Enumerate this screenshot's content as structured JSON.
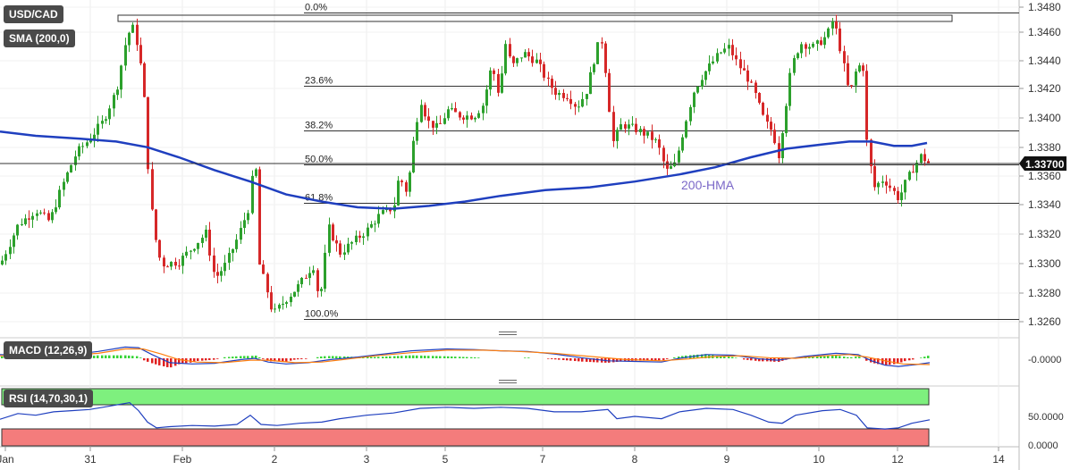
{
  "symbol": "USD/CAD",
  "indicators": {
    "sma": "SMA (200,0)",
    "macd": "MACD (12,26,9)",
    "rsi": "RSI (14,70,30,1)"
  },
  "current_price_label": "1.33700",
  "hma_label": "200-HMA",
  "colors": {
    "bull": "#2ca02c",
    "bear": "#d62728",
    "hma": "#1f3fbf",
    "macd_line": "#1f3fbf",
    "signal_line": "#ff7f0e",
    "rsi_line": "#1f3fbf",
    "overbought_band": "#7ef07e",
    "oversold_band": "#f47c7c",
    "hma_label": "#7b68c8",
    "badge": "#4a4a4a"
  },
  "chart_data": [
    {
      "type": "candlestick",
      "x_tick_labels": [
        "Jan",
        "31",
        "Feb",
        "2",
        "3",
        "5",
        "7",
        "8",
        "9",
        "10",
        "12",
        "14"
      ],
      "y_tick_labels": [
        "1.3260",
        "1.3280",
        "1.3300",
        "1.3320",
        "1.3340",
        "1.3360",
        "1.3380",
        "1.3400",
        "1.3420",
        "1.3440",
        "1.3460",
        "1.3480"
      ],
      "ylim": [
        1.3253,
        1.3485
      ],
      "fibonacci": [
        {
          "label": "0.0%",
          "value": 1.3476
        },
        {
          "label": "23.6%",
          "value": 1.3425
        },
        {
          "label": "38.2%",
          "value": 1.3394
        },
        {
          "label": "50.0%",
          "value": 1.337
        },
        {
          "label": "61.8%",
          "value": 1.3343
        },
        {
          "label": "100.0%",
          "value": 1.3262
        }
      ],
      "current_price": 1.337,
      "series": [
        {
          "name": "200-HMA",
          "values": [
            [
              0,
              1.3393
            ],
            [
              40,
              1.339
            ],
            [
              90,
              1.3388
            ],
            [
              130,
              1.3386
            ],
            [
              165,
              1.3382
            ],
            [
              200,
              1.3375
            ],
            [
              240,
              1.3366
            ],
            [
              280,
              1.3358
            ],
            [
              320,
              1.3349
            ],
            [
              360,
              1.3344
            ],
            [
              400,
              1.334
            ],
            [
              440,
              1.3339
            ],
            [
              480,
              1.3341
            ],
            [
              520,
              1.3344
            ],
            [
              560,
              1.3348
            ],
            [
              610,
              1.3352
            ],
            [
              660,
              1.3354
            ],
            [
              710,
              1.3358
            ],
            [
              760,
              1.3363
            ],
            [
              800,
              1.3368
            ],
            [
              840,
              1.3375
            ],
            [
              880,
              1.3381
            ],
            [
              920,
              1.3384
            ],
            [
              950,
              1.3386
            ],
            [
              975,
              1.3386
            ],
            [
              1000,
              1.3383
            ],
            [
              1020,
              1.3383
            ],
            [
              1037,
              1.3385
            ]
          ]
        }
      ],
      "candle_path": [
        [
          0,
          1.33
        ],
        [
          20,
          1.3328
        ],
        [
          40,
          1.3338
        ],
        [
          55,
          1.333
        ],
        [
          70,
          1.3356
        ],
        [
          85,
          1.3378
        ],
        [
          100,
          1.3388
        ],
        [
          115,
          1.34
        ],
        [
          130,
          1.3422
        ],
        [
          140,
          1.3455
        ],
        [
          147,
          1.3468
        ],
        [
          155,
          1.345
        ],
        [
          162,
          1.341
        ],
        [
          167,
          1.335
        ],
        [
          173,
          1.332
        ],
        [
          180,
          1.33
        ],
        [
          200,
          1.3302
        ],
        [
          215,
          1.3312
        ],
        [
          230,
          1.3322
        ],
        [
          240,
          1.329
        ],
        [
          252,
          1.33
        ],
        [
          265,
          1.3318
        ],
        [
          278,
          1.334
        ],
        [
          285,
          1.3378
        ],
        [
          290,
          1.33
        ],
        [
          298,
          1.3283
        ],
        [
          305,
          1.3265
        ],
        [
          320,
          1.3276
        ],
        [
          335,
          1.3286
        ],
        [
          350,
          1.33
        ],
        [
          357,
          1.3273
        ],
        [
          367,
          1.3326
        ],
        [
          380,
          1.3308
        ],
        [
          395,
          1.3316
        ],
        [
          410,
          1.3324
        ],
        [
          425,
          1.3335
        ],
        [
          440,
          1.334
        ],
        [
          446,
          1.3362
        ],
        [
          455,
          1.335
        ],
        [
          463,
          1.339
        ],
        [
          470,
          1.3416
        ],
        [
          478,
          1.34
        ],
        [
          490,
          1.3395
        ],
        [
          500,
          1.3408
        ],
        [
          515,
          1.3404
        ],
        [
          530,
          1.3404
        ],
        [
          540,
          1.3412
        ],
        [
          550,
          1.344
        ],
        [
          558,
          1.3418
        ],
        [
          565,
          1.3455
        ],
        [
          572,
          1.3438
        ],
        [
          585,
          1.3448
        ],
        [
          600,
          1.3442
        ],
        [
          612,
          1.3428
        ],
        [
          622,
          1.342
        ],
        [
          635,
          1.3418
        ],
        [
          645,
          1.341
        ],
        [
          655,
          1.342
        ],
        [
          665,
          1.3445
        ],
        [
          672,
          1.346
        ],
        [
          678,
          1.3432
        ],
        [
          685,
          1.3385
        ],
        [
          695,
          1.3398
        ],
        [
          710,
          1.3395
        ],
        [
          725,
          1.339
        ],
        [
          735,
          1.3385
        ],
        [
          745,
          1.3365
        ],
        [
          755,
          1.337
        ],
        [
          765,
          1.3396
        ],
        [
          775,
          1.342
        ],
        [
          785,
          1.3432
        ],
        [
          795,
          1.344
        ],
        [
          805,
          1.3448
        ],
        [
          815,
          1.3452
        ],
        [
          825,
          1.344
        ],
        [
          835,
          1.3432
        ],
        [
          845,
          1.3418
        ],
        [
          855,
          1.34
        ],
        [
          865,
          1.3392
        ],
        [
          870,
          1.3374
        ],
        [
          878,
          1.3408
        ],
        [
          885,
          1.3438
        ],
        [
          895,
          1.3455
        ],
        [
          910,
          1.3452
        ],
        [
          925,
          1.346
        ],
        [
          932,
          1.3472
        ],
        [
          940,
          1.345
        ],
        [
          950,
          1.3418
        ],
        [
          958,
          1.3438
        ],
        [
          965,
          1.344
        ],
        [
          970,
          1.338
        ],
        [
          978,
          1.3354
        ],
        [
          988,
          1.336
        ],
        [
          998,
          1.3352
        ],
        [
          1005,
          1.3346
        ],
        [
          1012,
          1.3356
        ],
        [
          1020,
          1.3366
        ],
        [
          1030,
          1.3376
        ],
        [
          1040,
          1.337
        ]
      ]
    },
    {
      "type": "line",
      "title": "MACD (12,26,9)",
      "y_tick_labels": [
        "-0.0000"
      ],
      "series": [
        {
          "name": "MACD",
          "values": [
            [
              0,
              0.3
            ],
            [
              40,
              0.25
            ],
            [
              80,
              0.3
            ],
            [
              110,
              0.55
            ],
            [
              140,
              0.9
            ],
            [
              155,
              0.85
            ],
            [
              170,
              0.3
            ],
            [
              190,
              -0.35
            ],
            [
              215,
              -0.45
            ],
            [
              240,
              -0.4
            ],
            [
              270,
              -0.1
            ],
            [
              285,
              0.0
            ],
            [
              300,
              -0.3
            ],
            [
              320,
              -0.45
            ],
            [
              345,
              -0.35
            ],
            [
              370,
              -0.1
            ],
            [
              400,
              0.1
            ],
            [
              430,
              0.35
            ],
            [
              460,
              0.6
            ],
            [
              500,
              0.75
            ],
            [
              530,
              0.7
            ],
            [
              560,
              0.6
            ],
            [
              590,
              0.55
            ],
            [
              620,
              0.35
            ],
            [
              650,
              0.05
            ],
            [
              680,
              -0.2
            ],
            [
              710,
              -0.25
            ],
            [
              740,
              -0.3
            ],
            [
              760,
              0.0
            ],
            [
              790,
              0.3
            ],
            [
              820,
              0.25
            ],
            [
              850,
              -0.05
            ],
            [
              870,
              -0.15
            ],
            [
              900,
              0.15
            ],
            [
              935,
              0.4
            ],
            [
              960,
              0.3
            ],
            [
              975,
              -0.2
            ],
            [
              990,
              -0.55
            ],
            [
              1005,
              -0.65
            ],
            [
              1025,
              -0.5
            ],
            [
              1040,
              -0.35
            ]
          ]
        },
        {
          "name": "Signal",
          "values": [
            [
              0,
              0.2
            ],
            [
              40,
              0.2
            ],
            [
              80,
              0.25
            ],
            [
              110,
              0.4
            ],
            [
              140,
              0.75
            ],
            [
              160,
              0.75
            ],
            [
              180,
              0.35
            ],
            [
              200,
              -0.1
            ],
            [
              220,
              -0.3
            ],
            [
              250,
              -0.35
            ],
            [
              280,
              -0.15
            ],
            [
              300,
              -0.15
            ],
            [
              330,
              -0.35
            ],
            [
              360,
              -0.3
            ],
            [
              390,
              -0.05
            ],
            [
              420,
              0.2
            ],
            [
              460,
              0.45
            ],
            [
              500,
              0.65
            ],
            [
              540,
              0.65
            ],
            [
              580,
              0.55
            ],
            [
              620,
              0.4
            ],
            [
              660,
              0.15
            ],
            [
              700,
              -0.1
            ],
            [
              740,
              -0.2
            ],
            [
              770,
              -0.05
            ],
            [
              800,
              0.15
            ],
            [
              830,
              0.2
            ],
            [
              860,
              0.05
            ],
            [
              890,
              0.0
            ],
            [
              920,
              0.2
            ],
            [
              950,
              0.3
            ],
            [
              970,
              0.1
            ],
            [
              990,
              -0.2
            ],
            [
              1010,
              -0.45
            ],
            [
              1040,
              -0.5
            ]
          ]
        }
      ]
    },
    {
      "type": "line",
      "title": "RSI (14,70,30,1)",
      "y_tick_labels": [
        "50.0000",
        "0.0000"
      ],
      "overbought": 70,
      "oversold": 30,
      "series": [
        {
          "name": "RSI",
          "values": [
            [
              0,
              45
            ],
            [
              20,
              55
            ],
            [
              40,
              52
            ],
            [
              60,
              58
            ],
            [
              80,
              60
            ],
            [
              100,
              62
            ],
            [
              115,
              66
            ],
            [
              130,
              70
            ],
            [
              145,
              74
            ],
            [
              155,
              60
            ],
            [
              165,
              40
            ],
            [
              175,
              30
            ],
            [
              190,
              32
            ],
            [
              215,
              34
            ],
            [
              240,
              33
            ],
            [
              265,
              36
            ],
            [
              280,
              52
            ],
            [
              292,
              36
            ],
            [
              310,
              34
            ],
            [
              335,
              38
            ],
            [
              360,
              40
            ],
            [
              380,
              46
            ],
            [
              410,
              52
            ],
            [
              440,
              56
            ],
            [
              470,
              64
            ],
            [
              500,
              66
            ],
            [
              530,
              64
            ],
            [
              560,
              66
            ],
            [
              590,
              64
            ],
            [
              620,
              58
            ],
            [
              650,
              58
            ],
            [
              680,
              62
            ],
            [
              690,
              46
            ],
            [
              710,
              50
            ],
            [
              740,
              46
            ],
            [
              760,
              58
            ],
            [
              790,
              64
            ],
            [
              820,
              62
            ],
            [
              840,
              52
            ],
            [
              860,
              40
            ],
            [
              875,
              38
            ],
            [
              890,
              52
            ],
            [
              920,
              60
            ],
            [
              940,
              62
            ],
            [
              958,
              52
            ],
            [
              970,
              30
            ],
            [
              990,
              28
            ],
            [
              1005,
              30
            ],
            [
              1020,
              38
            ],
            [
              1040,
              44
            ]
          ]
        }
      ]
    }
  ]
}
